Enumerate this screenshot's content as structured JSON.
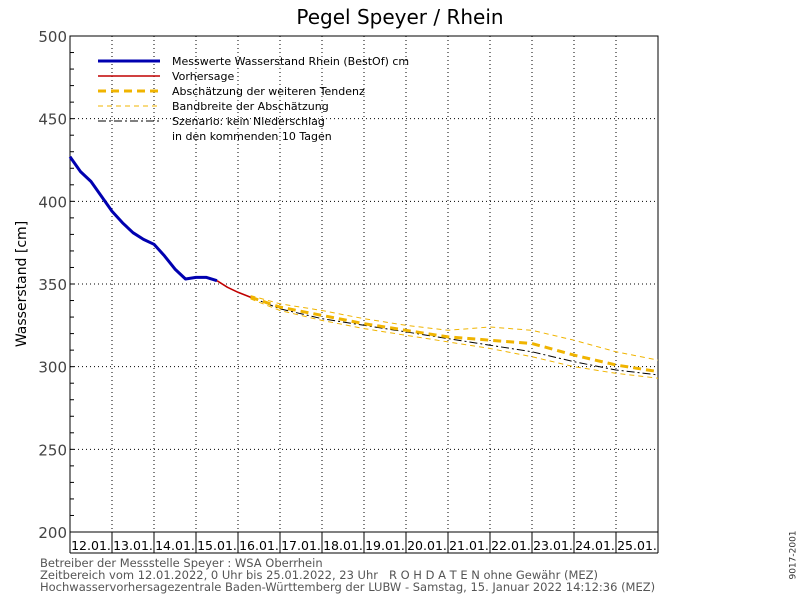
{
  "chart_data": {
    "type": "line",
    "title": "Pegel Speyer / Rhein",
    "ylabel": "Wasserstand [cm]",
    "ylim": [
      200,
      500
    ],
    "yticks": [
      200,
      250,
      300,
      350,
      400,
      450,
      500
    ],
    "xlim": [
      0,
      14
    ],
    "categories": [
      "12.01.",
      "13.01.",
      "14.01.",
      "15.01.",
      "16.01.",
      "17.01.",
      "18.01.",
      "19.01.",
      "20.01.",
      "21.01.",
      "22.01.",
      "23.01.",
      "24.01.",
      "25.01."
    ],
    "grid": true,
    "legend_position": "top-left",
    "legend": [
      {
        "label": "Messwerte Wasserstand Rhein (BestOf)  cm",
        "color": "#0000b0",
        "style": "solid-thick"
      },
      {
        "label": "Vorhersage",
        "color": "#c00000",
        "style": "solid"
      },
      {
        "label": "Abschätzung der weiteren Tendenz",
        "color": "#f0b400",
        "style": "dashed-thick"
      },
      {
        "label": "Bandbreite der Abschätzung",
        "color": "#f0b400",
        "style": "dashed-thin"
      },
      {
        "label": "Szenario: kein Niederschlag",
        "color": "#000000",
        "style": "dashdot"
      },
      {
        "label": "in den kommenden 10 Tagen",
        "color": "",
        "style": "none"
      }
    ],
    "series": [
      {
        "name": "Messwerte Wasserstand Rhein (BestOf)  cm",
        "x": [
          0,
          0.25,
          0.5,
          0.75,
          1.0,
          1.25,
          1.5,
          1.75,
          2.0,
          2.25,
          2.5,
          2.75,
          3.0,
          3.25,
          3.5
        ],
        "y": [
          427,
          418,
          412,
          403,
          394,
          387,
          381,
          377,
          374,
          367,
          359,
          353,
          354,
          354,
          352
        ]
      },
      {
        "name": "Vorhersage",
        "x": [
          3.5,
          3.75,
          4.0,
          4.3
        ],
        "y": [
          352,
          348,
          345,
          342
        ]
      },
      {
        "name": "Abschätzung der weiteren Tendenz",
        "x": [
          4.3,
          5,
          6,
          7,
          8,
          9,
          10,
          11,
          12,
          13,
          14
        ],
        "y": [
          342,
          336,
          331,
          326,
          322,
          318,
          316,
          314,
          307,
          301,
          297
        ]
      },
      {
        "name": "Bandbreite der Abschätzung",
        "x": [
          4.3,
          5,
          6,
          7,
          8,
          9,
          10,
          11,
          12,
          13,
          14
        ],
        "y": [
          343,
          338,
          334,
          329,
          325,
          322,
          324,
          322,
          316,
          309,
          304
        ]
      },
      {
        "name": "Bandbreite der Abschätzung",
        "x": [
          4.3,
          5,
          6,
          7,
          8,
          9,
          10,
          11,
          12,
          13,
          14
        ],
        "y": [
          341,
          334,
          328,
          323,
          319,
          315,
          311,
          306,
          300,
          296,
          293
        ]
      },
      {
        "name": "Szenario: kein Niederschlag",
        "x": [
          4.3,
          5,
          6,
          7,
          8,
          9,
          10,
          11,
          12,
          13,
          14
        ],
        "y": [
          342,
          335,
          329,
          325,
          321,
          317,
          313,
          309,
          303,
          298,
          295
        ]
      }
    ]
  },
  "footer": {
    "line1": "Betreiber der Messstelle Speyer : WSA Oberrhein",
    "line2": "Zeitbereich vom 12.01.2022, 0 Uhr bis 25.01.2022, 23 Uhr   R O H D A T E N ohne Gewähr (MEZ)",
    "line3": "Hochwasservorhersagezentrale Baden-Württemberg der LUBW - Samstag, 15. Januar 2022 14:12:36 (MEZ)"
  },
  "side_id": "9017-2001"
}
